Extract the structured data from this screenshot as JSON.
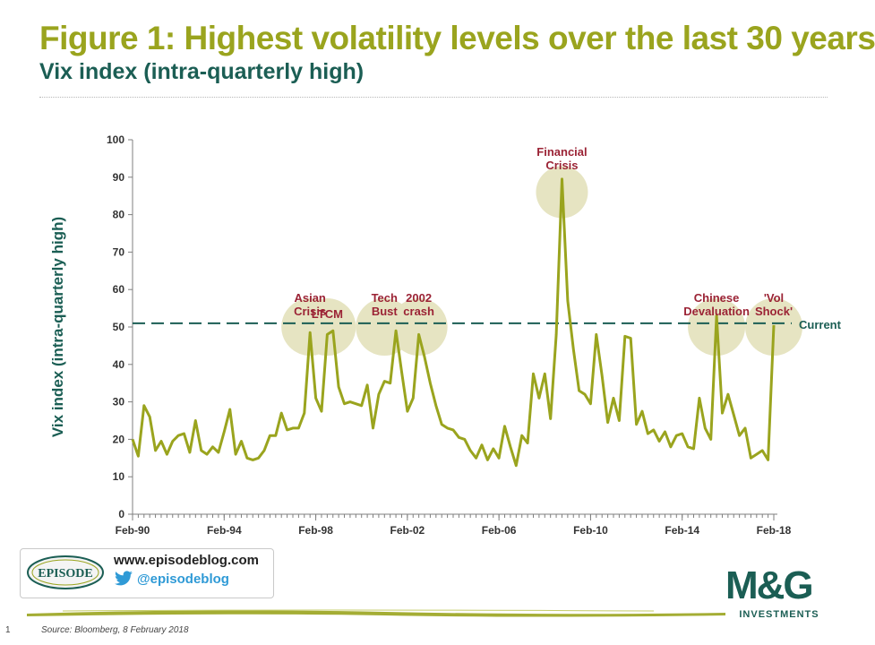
{
  "header": {
    "title": "Figure 1: Highest volatility levels over the last 30 years",
    "subtitle": "Vix index (intra-quarterly high)"
  },
  "colors": {
    "line": "#9aa41e",
    "current": "#1b5e54",
    "bubble": "#e6e4c2",
    "annotation": "#9b2335"
  },
  "chart_data": {
    "type": "line",
    "title": "",
    "ylabel": "Vix index (intra-quarterly high)",
    "xlabel": "",
    "ylim": [
      0,
      100
    ],
    "yticks": [
      0,
      10,
      20,
      30,
      40,
      50,
      60,
      70,
      80,
      90,
      100
    ],
    "xticks": [
      "Feb-90",
      "Feb-94",
      "Feb-98",
      "Feb-02",
      "Feb-06",
      "Feb-10",
      "Feb-14",
      "Feb-18"
    ],
    "grid": false,
    "series": [
      {
        "values": [
          20,
          15.5,
          29,
          26,
          17,
          19.5,
          16,
          19.5,
          21,
          21.5,
          16.5,
          25,
          17,
          16,
          18,
          16.5,
          22,
          28,
          16,
          19.5,
          15,
          14.5,
          15,
          17,
          21,
          21,
          27,
          22.5,
          23,
          23,
          27,
          48.5,
          31,
          27.5,
          48,
          49,
          34,
          29.5,
          30,
          29.5,
          29,
          34.5,
          23,
          32,
          35.5,
          35,
          49,
          38,
          27.5,
          31,
          48,
          42,
          35,
          29,
          24,
          23,
          22.5,
          20.5,
          20,
          17,
          15,
          18.5,
          14.5,
          17.5,
          15,
          23.5,
          18,
          13,
          21,
          19,
          37.5,
          31,
          37.5,
          25.5,
          48,
          89.5,
          57,
          44,
          33,
          32,
          29.5,
          48,
          37,
          24.5,
          31,
          25,
          47.5,
          47,
          24,
          27.5,
          21.5,
          22.5,
          19.5,
          22,
          18,
          21,
          21.5,
          18,
          17.5,
          31,
          23,
          20,
          53,
          27,
          32,
          26.5,
          21,
          23,
          15,
          16,
          17,
          14.5,
          50.5
        ]
      }
    ],
    "x_start": "Q1 1990",
    "x_step": "quarter",
    "reference_line": {
      "value": 51,
      "label": "Current",
      "style": "dashed"
    },
    "annotations": [
      {
        "text": [
          "Asian",
          "Crisis"
        ],
        "x": "Q4 1997",
        "y": 50
      },
      {
        "text": [
          "LTCM"
        ],
        "x": "Q3 1998",
        "y": 50
      },
      {
        "text": [
          "Tech",
          "Bust"
        ],
        "x": "Q1 2001",
        "y": 50
      },
      {
        "text": [
          "2002",
          "crash"
        ],
        "x": "Q3 2002",
        "y": 50
      },
      {
        "text": [
          "Financial",
          "Crisis"
        ],
        "x": "Q4 2008",
        "y": 86
      },
      {
        "text": [
          "Chinese",
          "Devaluation"
        ],
        "x": "Q3 2015",
        "y": 50
      },
      {
        "text": [
          "'Vol",
          "Shock'"
        ],
        "x": "Q1 2018",
        "y": 50
      }
    ]
  },
  "branding": {
    "logo_text": "EPISODE",
    "website": "www.episodeblog.com",
    "twitter_handle": "@episodeblog",
    "company": "M&G",
    "company_sub": "INVESTMENTS"
  },
  "footer": {
    "page_number": "1",
    "source": "Source: Bloomberg, 8 February 2018"
  }
}
